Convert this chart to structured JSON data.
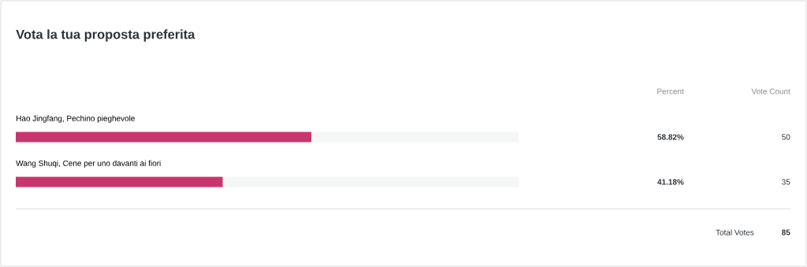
{
  "chart_data": {
    "type": "bar",
    "orientation": "horizontal",
    "stacked": true,
    "title": "Vota la tua proposta preferita",
    "categories": [
      "Hao Jingfang, Pechino pieghevole",
      "Wang Shuqi, Cene per uno davanti ai fiori"
    ],
    "series": [
      {
        "color": "#c8366d",
        "values": [
          58.82,
          41.18
        ],
        "value_labels": [
          "58.82%",
          "41.18%"
        ]
      },
      {
        "color": "#f5f6f6",
        "values": [
          41.18,
          58.82
        ]
      }
    ],
    "xlim": [
      0,
      100
    ],
    "tick_labels": false,
    "annotations": [
      "Percent",
      "Vote Count",
      "50",
      "35",
      "Total Votes",
      "85"
    ]
  }
}
